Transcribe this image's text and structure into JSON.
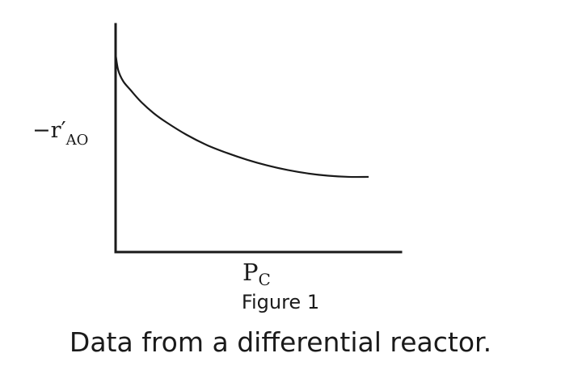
{
  "chart_data": {
    "type": "line",
    "title": "",
    "xlabel": {
      "base": "P",
      "sub": "C"
    },
    "ylabel": {
      "prefix": "−r′",
      "sub": "AO"
    },
    "x_ticks": [],
    "y_ticks": [],
    "grid": false,
    "legend": "none",
    "xlim": [
      0,
      1
    ],
    "ylim": [
      0,
      1
    ],
    "series": [
      {
        "x": [
          0.0,
          0.01,
          0.03,
          0.06,
          0.1,
          0.15,
          0.2,
          0.28,
          0.36,
          0.44,
          0.52,
          0.6,
          0.68,
          0.76,
          0.84,
          0.92,
          1.0
        ],
        "y": [
          0.87,
          0.8,
          0.75,
          0.71,
          0.66,
          0.61,
          0.57,
          0.515,
          0.47,
          0.435,
          0.405,
          0.38,
          0.36,
          0.345,
          0.335,
          0.33,
          0.33
        ]
      }
    ]
  },
  "figure_label": "Figure 1",
  "caption": "Data from a differential reactor."
}
